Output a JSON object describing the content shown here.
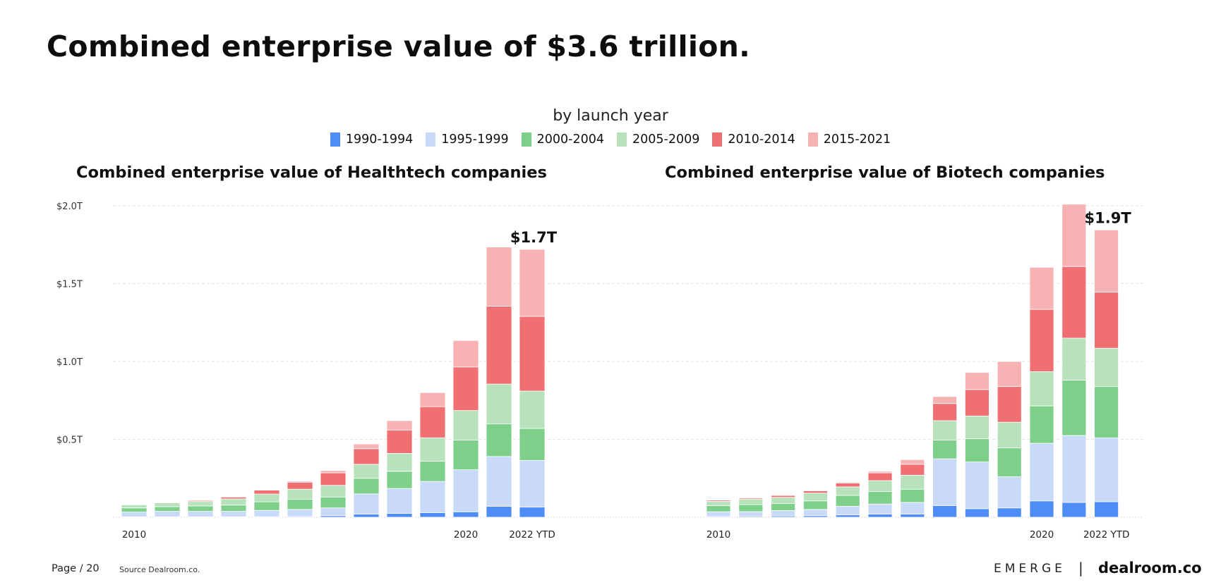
{
  "title": "Combined enterprise value of $3.6 trillion.",
  "legend_title": "by launch year",
  "legend": [
    {
      "label": "1990-1994",
      "color": "#4e8df5"
    },
    {
      "label": "1995-1999",
      "color": "#c8daf8"
    },
    {
      "label": "2000-2004",
      "color": "#7ecf8a"
    },
    {
      "label": "2005-2009",
      "color": "#b7e2bb"
    },
    {
      "label": "2010-2014",
      "color": "#ef6f72"
    },
    {
      "label": "2015-2021",
      "color": "#f7b2b4"
    }
  ],
  "footer": {
    "page": "Page / 20",
    "source": "Source Dealroom.co.",
    "brand": "EMERGE",
    "separator": "|",
    "dealroom": "dealroom.co"
  },
  "chart_data": [
    {
      "type": "bar",
      "stacked": true,
      "title": "Combined enterprise value of Healthtech companies",
      "categories": [
        "2010",
        "2011",
        "2012",
        "2013",
        "2014",
        "2015",
        "2016",
        "2017",
        "2018",
        "2019",
        "2020",
        "2021",
        "2022 YTD"
      ],
      "tick_labels": [
        "2010",
        "",
        "",
        "",
        "",
        "",
        "",
        "",
        "",
        "",
        "2020",
        "",
        "2022 YTD"
      ],
      "yticks": [
        {
          "value": 0.5,
          "label": "$0.5T"
        },
        {
          "value": 1.0,
          "label": "$1.0T"
        },
        {
          "value": 1.5,
          "label": "$1.5T"
        },
        {
          "value": 2.0,
          "label": "$2.0T"
        }
      ],
      "ylim": [
        0,
        2.0
      ],
      "grid": true,
      "annotation": {
        "text": "$1.7T",
        "category_index": 12
      },
      "series": [
        {
          "name": "1990-1994",
          "values": [
            0.003,
            0.003,
            0.003,
            0.003,
            0.004,
            0.005,
            0.01,
            0.02,
            0.025,
            0.03,
            0.035,
            0.07,
            0.065
          ]
        },
        {
          "name": "1995-1999",
          "values": [
            0.03,
            0.035,
            0.035,
            0.035,
            0.04,
            0.045,
            0.05,
            0.13,
            0.16,
            0.2,
            0.27,
            0.32,
            0.3
          ]
        },
        {
          "name": "2000-2004",
          "values": [
            0.027,
            0.03,
            0.035,
            0.04,
            0.055,
            0.065,
            0.07,
            0.1,
            0.11,
            0.13,
            0.19,
            0.21,
            0.205
          ]
        },
        {
          "name": "2005-2009",
          "values": [
            0.02,
            0.025,
            0.028,
            0.04,
            0.05,
            0.065,
            0.075,
            0.09,
            0.115,
            0.15,
            0.19,
            0.255,
            0.24
          ]
        },
        {
          "name": "2010-2014",
          "values": [
            0.002,
            0.004,
            0.007,
            0.012,
            0.025,
            0.045,
            0.08,
            0.1,
            0.15,
            0.2,
            0.28,
            0.5,
            0.48
          ]
        },
        {
          "name": "2015-2021",
          "values": [
            0.0,
            0.001,
            0.002,
            0.003,
            0.004,
            0.006,
            0.015,
            0.03,
            0.06,
            0.09,
            0.17,
            0.38,
            0.43
          ]
        }
      ]
    },
    {
      "type": "bar",
      "stacked": true,
      "title": "Combined enterprise value of Biotech companies",
      "categories": [
        "2010",
        "2011",
        "2012",
        "2013",
        "2014",
        "2015",
        "2016",
        "2017",
        "2018",
        "2019",
        "2020",
        "2021",
        "2022 YTD"
      ],
      "tick_labels": [
        "2010",
        "",
        "",
        "",
        "",
        "",
        "",
        "",
        "",
        "",
        "2020",
        "",
        "2022 YTD"
      ],
      "ylim": [
        0,
        2.0
      ],
      "grid": true,
      "annotation": {
        "text": "$1.9T",
        "category_index": 12
      },
      "series": [
        {
          "name": "1990-1994",
          "values": [
            0.005,
            0.006,
            0.008,
            0.01,
            0.015,
            0.02,
            0.02,
            0.075,
            0.055,
            0.06,
            0.105,
            0.095,
            0.1
          ]
        },
        {
          "name": "1995-1999",
          "values": [
            0.03,
            0.03,
            0.035,
            0.04,
            0.055,
            0.065,
            0.075,
            0.3,
            0.3,
            0.2,
            0.37,
            0.43,
            0.41
          ]
        },
        {
          "name": "2000-2004",
          "values": [
            0.04,
            0.045,
            0.045,
            0.055,
            0.07,
            0.08,
            0.085,
            0.12,
            0.15,
            0.185,
            0.24,
            0.355,
            0.33
          ]
        },
        {
          "name": "2005-2009",
          "values": [
            0.028,
            0.035,
            0.04,
            0.05,
            0.055,
            0.07,
            0.09,
            0.125,
            0.145,
            0.165,
            0.22,
            0.27,
            0.245
          ]
        },
        {
          "name": "2010-2014",
          "values": [
            0.007,
            0.008,
            0.012,
            0.015,
            0.025,
            0.05,
            0.07,
            0.11,
            0.17,
            0.23,
            0.4,
            0.46,
            0.36
          ]
        },
        {
          "name": "2015-2021",
          "values": [
            0.0,
            0.001,
            0.002,
            0.003,
            0.005,
            0.01,
            0.03,
            0.045,
            0.11,
            0.16,
            0.27,
            0.4,
            0.4
          ]
        }
      ]
    }
  ]
}
